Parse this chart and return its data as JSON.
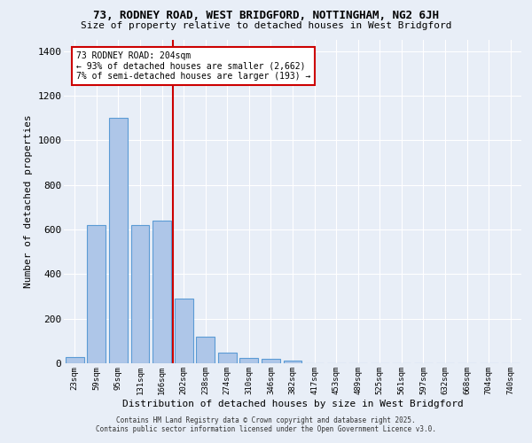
{
  "title1": "73, RODNEY ROAD, WEST BRIDGFORD, NOTTINGHAM, NG2 6JH",
  "title2": "Size of property relative to detached houses in West Bridgford",
  "xlabel": "Distribution of detached houses by size in West Bridgford",
  "ylabel": "Number of detached properties",
  "bar_labels": [
    "23sqm",
    "59sqm",
    "95sqm",
    "131sqm",
    "166sqm",
    "202sqm",
    "238sqm",
    "274sqm",
    "310sqm",
    "346sqm",
    "382sqm",
    "417sqm",
    "453sqm",
    "489sqm",
    "525sqm",
    "561sqm",
    "597sqm",
    "632sqm",
    "668sqm",
    "704sqm",
    "740sqm"
  ],
  "bar_values": [
    28,
    620,
    1100,
    620,
    640,
    290,
    120,
    48,
    22,
    18,
    12,
    0,
    0,
    0,
    0,
    0,
    0,
    0,
    0,
    0,
    0
  ],
  "bar_color": "#aec6e8",
  "bar_edge_color": "#5b9bd5",
  "bg_color": "#e8eef7",
  "grid_color": "#ffffff",
  "vline_color": "#cc0000",
  "annotation_text": "73 RODNEY ROAD: 204sqm\n← 93% of detached houses are smaller (2,662)\n7% of semi-detached houses are larger (193) →",
  "annotation_box_color": "#ffffff",
  "annotation_box_edge": "#cc0000",
  "ylim": [
    0,
    1450
  ],
  "footer1": "Contains HM Land Registry data © Crown copyright and database right 2025.",
  "footer2": "Contains public sector information licensed under the Open Government Licence v3.0."
}
